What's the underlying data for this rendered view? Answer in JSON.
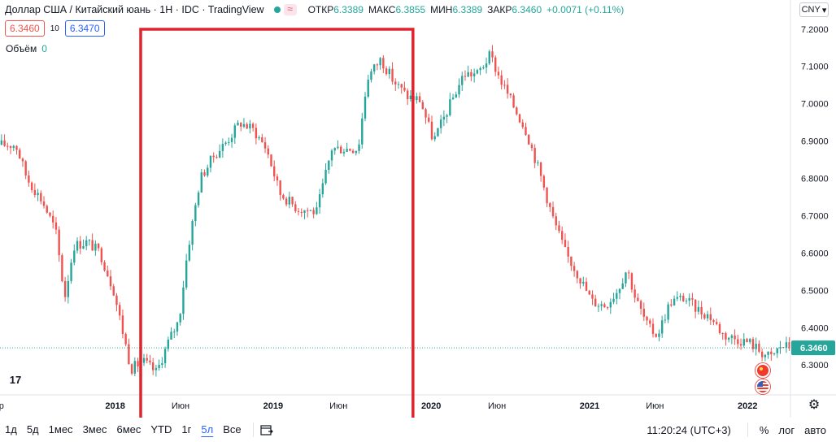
{
  "legend": {
    "title": "Доллар США / Китайский юань · 1Н · IDC · TradingView",
    "badge": "≈",
    "ohlc": [
      {
        "key": "ОТКР",
        "value": "6.3389"
      },
      {
        "key": "МАКС",
        "value": "6.3855"
      },
      {
        "key": "МИН",
        "value": "6.3389"
      },
      {
        "key": "ЗАКР",
        "value": "6.3460"
      },
      {
        "key": "",
        "value": "+0.0071 (+0.11%)"
      }
    ]
  },
  "quote": {
    "sell": "6.3460",
    "spread": "10",
    "buy": "6.3470"
  },
  "volume": {
    "label": "Объём",
    "value": "0"
  },
  "currency": "CNY",
  "logo": "17",
  "colors": {
    "up": "#26a69a",
    "down": "#ef5350",
    "highlight": "#e0242d",
    "last_price": "#26a69a"
  },
  "chart_data": {
    "type": "candlestick",
    "title": "Доллар США / Китайский юань · 1Н · IDC · TradingView",
    "ylim": [
      6.22,
      7.23
    ],
    "y_ticks": [
      7.2,
      7.1,
      7.0,
      6.9,
      6.8,
      6.7,
      6.6,
      6.5,
      6.4,
      6.3
    ],
    "y_tick_labels": [
      "7.2000",
      "7.1000",
      "7.0000",
      "6.9000",
      "6.8000",
      "6.7000",
      "6.6000",
      "6.5000",
      "6.4000",
      "6.3000"
    ],
    "x_range": [
      "2017-04-10",
      "2022-04-10"
    ],
    "x_ticks": [
      {
        "date": "2017-04-01",
        "label": "Апр"
      },
      {
        "date": "2018-01-01",
        "label": "2018"
      },
      {
        "date": "2018-06-01",
        "label": "Июн"
      },
      {
        "date": "2019-01-01",
        "label": "2019"
      },
      {
        "date": "2019-06-01",
        "label": "Июн"
      },
      {
        "date": "2020-01-01",
        "label": "2020"
      },
      {
        "date": "2020-06-01",
        "label": "Июн"
      },
      {
        "date": "2021-01-01",
        "label": "2021"
      },
      {
        "date": "2021-06-01",
        "label": "Июн"
      },
      {
        "date": "2022-01-01",
        "label": "2022"
      }
    ],
    "close_path": [
      [
        "2017-04-10",
        6.89
      ],
      [
        "2017-05-20",
        6.89
      ],
      [
        "2017-06-15",
        6.8
      ],
      [
        "2017-07-20",
        6.74
      ],
      [
        "2017-08-20",
        6.66
      ],
      [
        "2017-09-10",
        6.48
      ],
      [
        "2017-10-01",
        6.62
      ],
      [
        "2017-11-01",
        6.63
      ],
      [
        "2017-12-01",
        6.6
      ],
      [
        "2018-01-01",
        6.5
      ],
      [
        "2018-02-10",
        6.29
      ],
      [
        "2018-03-10",
        6.31
      ],
      [
        "2018-04-10",
        6.28
      ],
      [
        "2018-05-10",
        6.37
      ],
      [
        "2018-06-01",
        6.42
      ],
      [
        "2018-06-20",
        6.6
      ],
      [
        "2018-07-20",
        6.8
      ],
      [
        "2018-08-20",
        6.86
      ],
      [
        "2018-09-20",
        6.9
      ],
      [
        "2018-10-20",
        6.95
      ],
      [
        "2018-11-20",
        6.93
      ],
      [
        "2018-12-20",
        6.88
      ],
      [
        "2019-01-20",
        6.76
      ],
      [
        "2019-03-01",
        6.72
      ],
      [
        "2019-04-15",
        6.71
      ],
      [
        "2019-05-20",
        6.88
      ],
      [
        "2019-06-20",
        6.88
      ],
      [
        "2019-07-20",
        6.88
      ],
      [
        "2019-08-10",
        7.07
      ],
      [
        "2019-09-10",
        7.12
      ],
      [
        "2019-10-10",
        7.06
      ],
      [
        "2019-11-10",
        7.02
      ],
      [
        "2019-12-10",
        7.01
      ],
      [
        "2020-01-10",
        6.9
      ],
      [
        "2020-02-10",
        6.98
      ],
      [
        "2020-03-20",
        7.08
      ],
      [
        "2020-04-20",
        7.08
      ],
      [
        "2020-05-20",
        7.13
      ],
      [
        "2020-06-10",
        7.07
      ],
      [
        "2020-07-10",
        7.0
      ],
      [
        "2020-08-10",
        6.93
      ],
      [
        "2020-09-10",
        6.82
      ],
      [
        "2020-10-10",
        6.7
      ],
      [
        "2020-11-10",
        6.6
      ],
      [
        "2020-12-10",
        6.54
      ],
      [
        "2021-01-10",
        6.47
      ],
      [
        "2021-02-10",
        6.46
      ],
      [
        "2021-03-10",
        6.5
      ],
      [
        "2021-04-01",
        6.56
      ],
      [
        "2021-04-20",
        6.48
      ],
      [
        "2021-05-20",
        6.4
      ],
      [
        "2021-06-10",
        6.38
      ],
      [
        "2021-07-10",
        6.47
      ],
      [
        "2021-08-10",
        6.48
      ],
      [
        "2021-09-10",
        6.45
      ],
      [
        "2021-10-10",
        6.43
      ],
      [
        "2021-11-10",
        6.38
      ],
      [
        "2021-12-10",
        6.37
      ],
      [
        "2022-01-10",
        6.36
      ],
      [
        "2022-02-10",
        6.33
      ],
      [
        "2022-03-01",
        6.32
      ],
      [
        "2022-03-20",
        6.35
      ]
    ],
    "last_price": 6.346,
    "last_price_label": "6.3460",
    "highlight_range": [
      "2018-03-01",
      "2019-11-20"
    ]
  },
  "bottom_bar": {
    "timeframes": [
      "1д",
      "5д",
      "1мес",
      "3мес",
      "6мес",
      "YTD",
      "1г",
      "5л",
      "Все"
    ],
    "active_timeframe": "5л",
    "clock": "11:20:24 (UTC+3)",
    "percent": "%",
    "log": "лог",
    "auto": "авто"
  }
}
